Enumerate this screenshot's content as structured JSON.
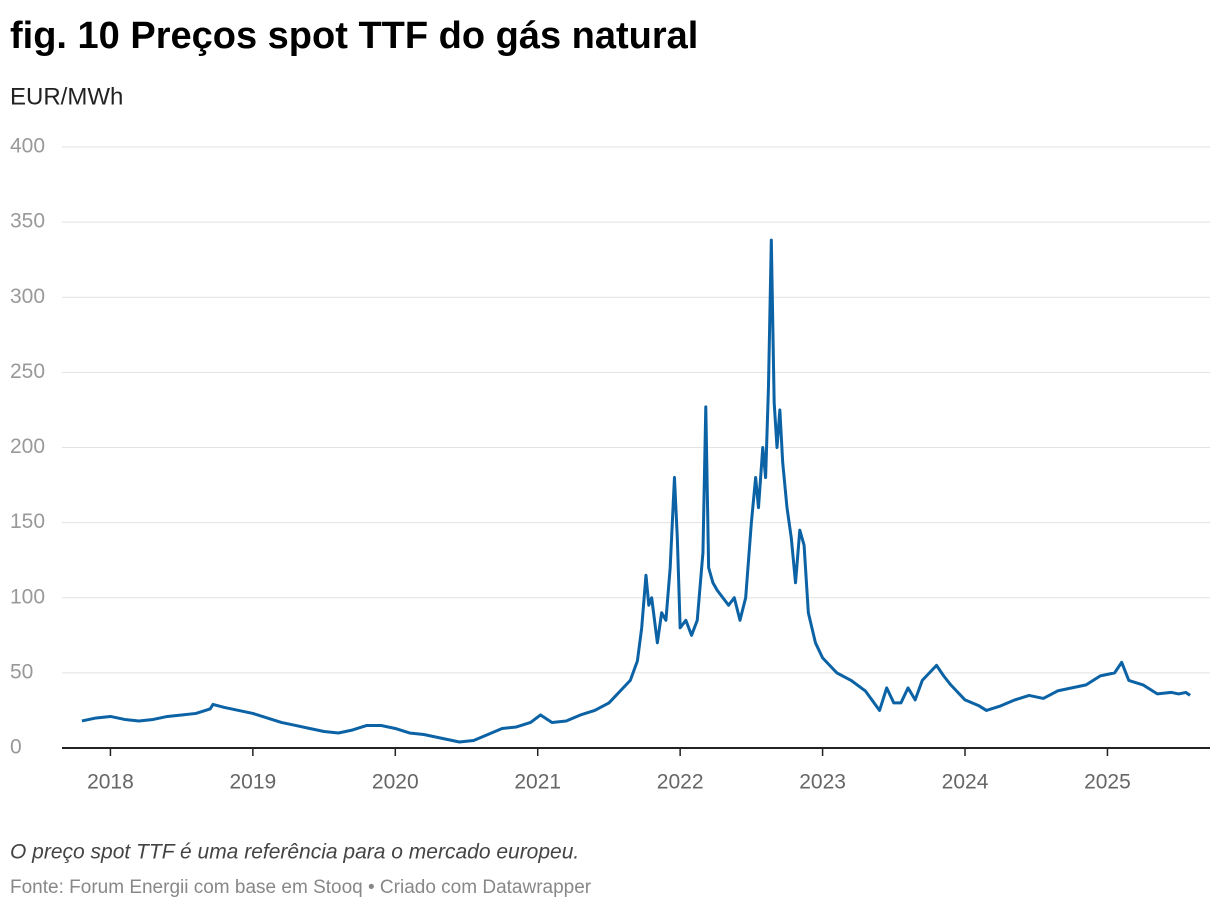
{
  "chart_data": {
    "type": "line",
    "title": "fig. 10 Preços spot TTF do gás natural",
    "subtitle": "EUR/MWh",
    "note": "O preço spot TTF é uma referência para o mercado europeu.",
    "source": "Fonte: Forum Energii com base em Stooq • Criado com Datawrapper",
    "x": [
      2017.8,
      2017.9,
      2018.0,
      2018.1,
      2018.2,
      2018.3,
      2018.4,
      2018.5,
      2018.6,
      2018.7,
      2018.72,
      2018.8,
      2018.9,
      2019.0,
      2019.1,
      2019.2,
      2019.3,
      2019.4,
      2019.5,
      2019.6,
      2019.7,
      2019.8,
      2019.9,
      2020.0,
      2020.1,
      2020.2,
      2020.3,
      2020.4,
      2020.45,
      2020.55,
      2020.65,
      2020.75,
      2020.85,
      2020.95,
      2021.02,
      2021.1,
      2021.2,
      2021.3,
      2021.4,
      2021.5,
      2021.55,
      2021.6,
      2021.65,
      2021.7,
      2021.73,
      2021.76,
      2021.78,
      2021.8,
      2021.84,
      2021.87,
      2021.9,
      2021.93,
      2021.96,
      2021.98,
      2022.0,
      2022.04,
      2022.08,
      2022.12,
      2022.16,
      2022.18,
      2022.2,
      2022.23,
      2022.26,
      2022.3,
      2022.34,
      2022.38,
      2022.42,
      2022.46,
      2022.5,
      2022.53,
      2022.55,
      2022.58,
      2022.6,
      2022.62,
      2022.64,
      2022.66,
      2022.68,
      2022.7,
      2022.72,
      2022.75,
      2022.78,
      2022.81,
      2022.84,
      2022.87,
      2022.9,
      2022.95,
      2023.0,
      2023.05,
      2023.1,
      2023.2,
      2023.3,
      2023.4,
      2023.45,
      2023.5,
      2023.55,
      2023.6,
      2023.65,
      2023.7,
      2023.75,
      2023.8,
      2023.85,
      2023.9,
      2024.0,
      2024.1,
      2024.15,
      2024.25,
      2024.35,
      2024.45,
      2024.55,
      2024.65,
      2024.75,
      2024.85,
      2024.95,
      2025.05,
      2025.1,
      2025.15,
      2025.25,
      2025.35,
      2025.45,
      2025.5,
      2025.55,
      2025.58
    ],
    "series": [
      {
        "name": "TTF",
        "color": "#0b62a4",
        "values": [
          18,
          20,
          21,
          19,
          18,
          19,
          21,
          22,
          23,
          26,
          29,
          27,
          25,
          23,
          20,
          17,
          15,
          13,
          11,
          10,
          12,
          15,
          15,
          13,
          10,
          9,
          7,
          5,
          4,
          5,
          9,
          13,
          14,
          17,
          22,
          17,
          18,
          22,
          25,
          30,
          35,
          40,
          45,
          58,
          80,
          115,
          95,
          100,
          70,
          90,
          85,
          120,
          180,
          140,
          80,
          85,
          75,
          85,
          130,
          227,
          120,
          110,
          105,
          100,
          95,
          100,
          85,
          100,
          150,
          180,
          160,
          200,
          180,
          240,
          338,
          230,
          200,
          225,
          190,
          160,
          140,
          110,
          145,
          135,
          90,
          70,
          60,
          55,
          50,
          45,
          38,
          25,
          40,
          30,
          30,
          40,
          32,
          45,
          50,
          55,
          48,
          42,
          32,
          28,
          25,
          28,
          32,
          35,
          33,
          38,
          40,
          42,
          48,
          50,
          57,
          45,
          42,
          36,
          37,
          36,
          37,
          35
        ]
      }
    ],
    "xlim": [
      2017.66,
      2025.72
    ],
    "xticks": [
      2018,
      2019,
      2020,
      2021,
      2022,
      2023,
      2024,
      2025
    ],
    "ylim": [
      0,
      400
    ],
    "yticks": [
      0,
      50,
      100,
      150,
      200,
      250,
      300,
      350,
      400
    ],
    "grid": true
  }
}
